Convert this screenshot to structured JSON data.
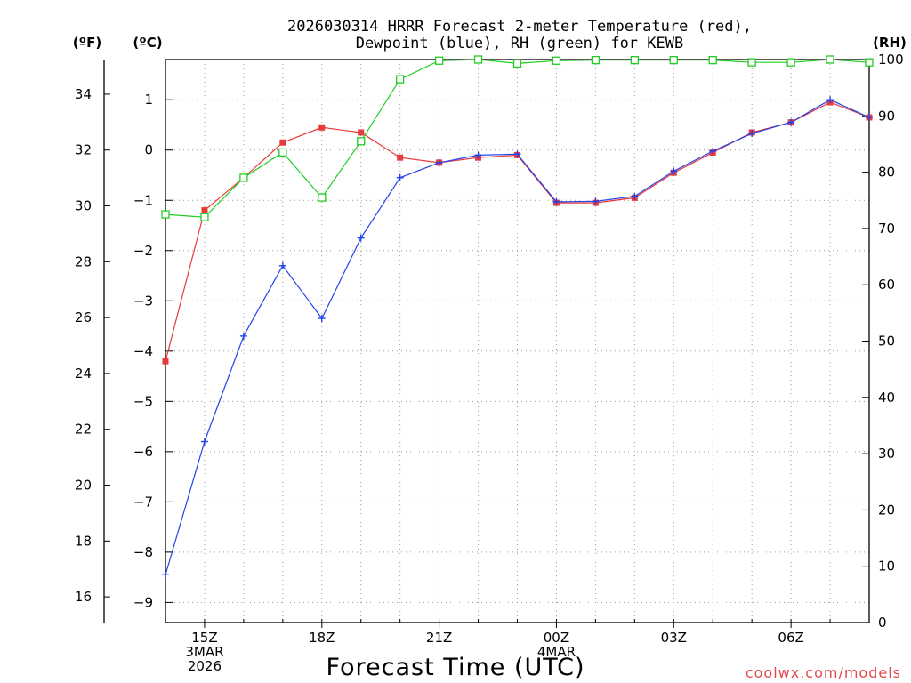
{
  "title_lines": [
    "2026030314 HRRR Forecast 2-meter Temperature (red),",
    "Dewpoint (blue), RH (green) for KEWB"
  ],
  "units": {
    "fahrenheit": "(ºF)",
    "celsius": "(ºC)",
    "rh": "(RH)"
  },
  "xlabel": "Forecast Time (UTC)",
  "credit": "coolwx.com/models",
  "colors": {
    "temperature": "#e8393c",
    "dewpoint": "#2244ee",
    "rh": "#22cc22"
  },
  "chart_data": {
    "type": "line",
    "title": "2026030314 HRRR Forecast 2-meter Temperature (red), Dewpoint (blue), RH (green) for KEWB",
    "xlabel": "Forecast Time (UTC)",
    "x_hours": [
      14,
      15,
      16,
      17,
      18,
      19,
      20,
      21,
      22,
      23,
      24,
      25,
      26,
      27,
      28,
      29,
      30,
      31,
      32
    ],
    "xlim": [
      14,
      32
    ],
    "celsius_range": [
      -9.4,
      1.8
    ],
    "rh_range": [
      0,
      100
    ],
    "x_ticks": [
      {
        "hour": 15,
        "lines": [
          "15Z",
          "3MAR",
          "2026"
        ]
      },
      {
        "hour": 18,
        "lines": [
          "18Z"
        ]
      },
      {
        "hour": 21,
        "lines": [
          "21Z"
        ]
      },
      {
        "hour": 24,
        "lines": [
          "00Z",
          "4MAR"
        ]
      },
      {
        "hour": 27,
        "lines": [
          "03Z"
        ]
      },
      {
        "hour": 30,
        "lines": [
          "06Z"
        ]
      }
    ],
    "celsius_ticks": [
      1,
      0,
      -1,
      -2,
      -3,
      -4,
      -5,
      -6,
      -7,
      -8,
      -9
    ],
    "fahrenheit_ticks": [
      34,
      32,
      30,
      28,
      26,
      24,
      22,
      20,
      18,
      16
    ],
    "rh_ticks": [
      100,
      90,
      80,
      70,
      60,
      50,
      40,
      30,
      20,
      10,
      0
    ],
    "series": [
      {
        "name": "Temperature",
        "unit": "C",
        "color": "#e8393c",
        "marker": "filled-square",
        "values": [
          -4.2,
          -1.2,
          -0.55,
          0.15,
          0.45,
          0.35,
          -0.15,
          -0.25,
          -0.15,
          -0.1,
          -1.05,
          -1.05,
          -0.95,
          -0.45,
          -0.05,
          0.35,
          0.55,
          0.95,
          0.65
        ]
      },
      {
        "name": "Dewpoint",
        "unit": "C",
        "color": "#2244ee",
        "marker": "plus",
        "values": [
          -8.45,
          -5.8,
          -3.7,
          -2.3,
          -3.35,
          -1.75,
          -0.55,
          -0.25,
          -0.1,
          -0.08,
          -1.03,
          -1.02,
          -0.92,
          -0.42,
          -0.02,
          0.33,
          0.55,
          1.0,
          0.65
        ]
      },
      {
        "name": "RH",
        "unit": "%",
        "color": "#22cc22",
        "marker": "open-square",
        "values": [
          72.5,
          72,
          79,
          83.5,
          75.5,
          85.5,
          96.5,
          99.8,
          100,
          99.3,
          99.8,
          99.9,
          99.9,
          99.9,
          99.9,
          99.5,
          99.5,
          100,
          99.5
        ]
      }
    ]
  }
}
